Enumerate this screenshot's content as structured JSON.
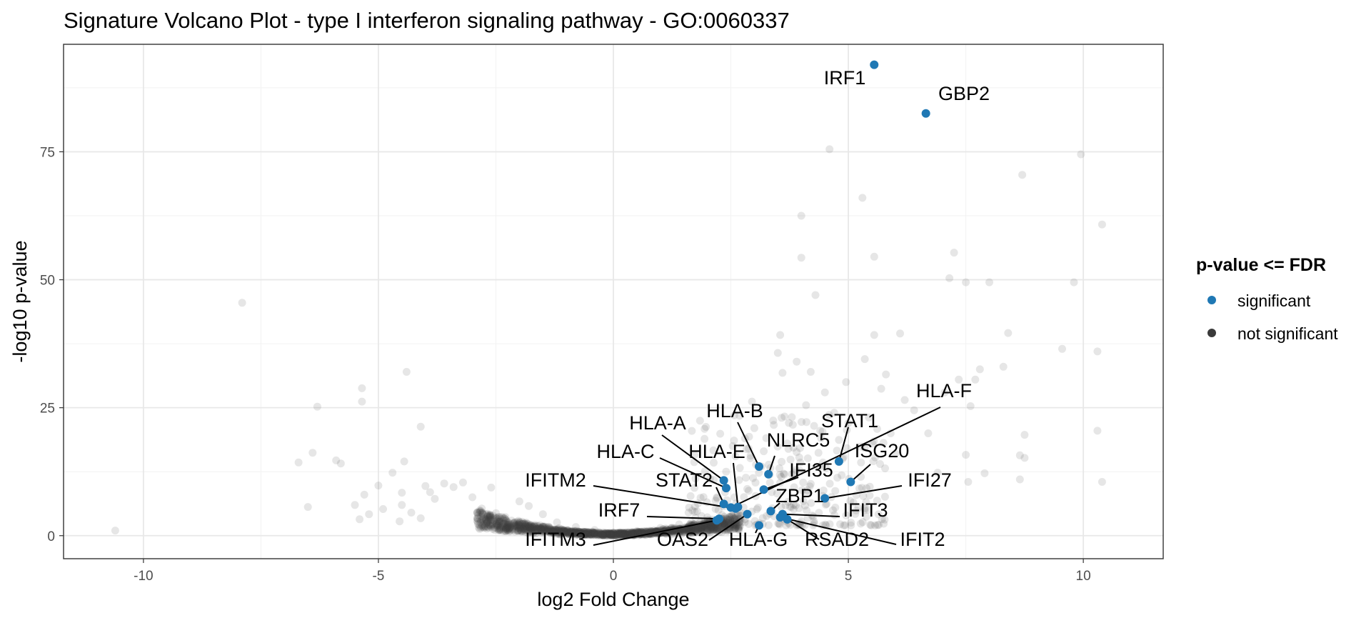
{
  "chart_data": {
    "type": "scatter",
    "title": "Signature Volcano Plot - type I interferon signaling pathway - GO:0060337",
    "xlabel": "log2 Fold Change",
    "ylabel": "-log10 p-value",
    "xlim": [
      -11.7,
      11.7
    ],
    "ylim": [
      -4.5,
      96
    ],
    "xticks": [
      -10,
      -5,
      0,
      5,
      10
    ],
    "yticks": [
      0,
      25,
      50,
      75
    ],
    "grid": true,
    "legend": {
      "title": "p-value <= FDR",
      "position": "right",
      "entries": [
        {
          "label": "significant",
          "color": "#1f78b4"
        },
        {
          "label": "not significant",
          "color": "#3a3a3a"
        }
      ]
    },
    "colors": {
      "significant": "#1f78b4",
      "not_significant": "#3a3a3a",
      "background_points": "#b0b0b0"
    },
    "series": [
      {
        "name": "significant",
        "points": [
          {
            "gene": "IRF1",
            "x": 5.55,
            "y": 92.0
          },
          {
            "gene": "GBP2",
            "x": 6.65,
            "y": 82.5
          },
          {
            "gene": "HLA-B",
            "x": 3.1,
            "y": 13.5
          },
          {
            "gene": "NLRC5",
            "x": 3.3,
            "y": 12.0
          },
          {
            "gene": "STAT1",
            "x": 4.8,
            "y": 14.5
          },
          {
            "gene": "HLA-F",
            "x": 2.5,
            "y": 5.5
          },
          {
            "gene": "ISG20",
            "x": 5.05,
            "y": 10.5
          },
          {
            "gene": "IFI27",
            "x": 4.5,
            "y": 7.3
          },
          {
            "gene": "HLA-A",
            "x": 2.35,
            "y": 10.8
          },
          {
            "gene": "HLA-C",
            "x": 2.4,
            "y": 9.3
          },
          {
            "gene": "HLA-E",
            "x": 2.65,
            "y": 5.6
          },
          {
            "gene": "STAT2",
            "x": 2.35,
            "y": 6.2
          },
          {
            "gene": "IFI35",
            "x": 3.2,
            "y": 9.0
          },
          {
            "gene": "IFITM2",
            "x": 2.6,
            "y": 5.3
          },
          {
            "gene": "ZBP1",
            "x": 3.35,
            "y": 4.8
          },
          {
            "gene": "IFIT3",
            "x": 3.6,
            "y": 4.2
          },
          {
            "gene": "IRF7",
            "x": 2.25,
            "y": 3.3
          },
          {
            "gene": "IFIT2",
            "x": 3.55,
            "y": 3.6
          },
          {
            "gene": "RSAD2",
            "x": 3.7,
            "y": 3.2
          },
          {
            "gene": "HLA-G",
            "x": 3.1,
            "y": 2.0
          },
          {
            "gene": "OAS2",
            "x": 2.85,
            "y": 4.2
          },
          {
            "gene": "IFITM3",
            "x": 2.2,
            "y": 3.0
          }
        ]
      },
      {
        "name": "not significant",
        "points": [
          [
            -10.6,
            1.0
          ],
          [
            -7.9,
            45.5
          ],
          [
            -6.7,
            14.3
          ],
          [
            -6.4,
            16.2
          ],
          [
            -6.5,
            5.6
          ],
          [
            -6.3,
            25.2
          ],
          [
            -5.9,
            14.7
          ],
          [
            -5.8,
            14.1
          ],
          [
            -5.5,
            6.0
          ],
          [
            -5.4,
            3.2
          ],
          [
            -5.35,
            28.8
          ],
          [
            -5.35,
            26.2
          ],
          [
            -5.3,
            8.0
          ],
          [
            -5.2,
            4.2
          ],
          [
            -5.0,
            9.8
          ],
          [
            -4.9,
            5.2
          ],
          [
            -4.7,
            12.3
          ],
          [
            -4.55,
            2.8
          ],
          [
            -4.5,
            8.4
          ],
          [
            -4.5,
            6.0
          ],
          [
            -4.45,
            14.5
          ],
          [
            -4.4,
            32.0
          ],
          [
            -4.3,
            4.5
          ],
          [
            -4.1,
            3.4
          ],
          [
            -4.1,
            21.3
          ],
          [
            -4.0,
            9.7
          ],
          [
            -3.9,
            8.5
          ],
          [
            -3.8,
            7.2
          ],
          [
            -3.6,
            10.2
          ],
          [
            -3.4,
            9.5
          ],
          [
            -3.2,
            10.4
          ],
          [
            -3.0,
            7.5
          ],
          [
            -2.8,
            5.3
          ],
          [
            -2.6,
            9.4
          ],
          [
            -2.5,
            4.4
          ],
          [
            -2.3,
            3.2
          ],
          [
            -2.0,
            6.7
          ],
          [
            -1.8,
            5.8
          ],
          [
            -1.5,
            4.2
          ],
          [
            -1.2,
            2.6
          ],
          [
            -0.8,
            1.7
          ],
          [
            -0.4,
            1.1
          ],
          [
            0.0,
            0.6
          ],
          [
            0.5,
            0.9
          ],
          [
            1.0,
            1.5
          ],
          [
            1.4,
            2.2
          ],
          [
            1.6,
            4.5
          ],
          [
            1.8,
            6.3
          ],
          [
            2.0,
            3.6
          ],
          [
            2.2,
            7.5
          ],
          [
            2.4,
            12.5
          ],
          [
            2.6,
            15.5
          ],
          [
            2.8,
            19.0
          ],
          [
            2.95,
            26.2
          ],
          [
            3.0,
            21.0
          ],
          [
            3.2,
            16.5
          ],
          [
            3.4,
            22.5
          ],
          [
            3.5,
            35.7
          ],
          [
            3.55,
            39.2
          ],
          [
            3.6,
            31.8
          ],
          [
            3.7,
            18.0
          ],
          [
            3.8,
            12.0
          ],
          [
            3.9,
            34.0
          ],
          [
            4.0,
            62.5
          ],
          [
            4.0,
            54.3
          ],
          [
            4.1,
            25.5
          ],
          [
            4.2,
            32.0
          ],
          [
            4.3,
            47.0
          ],
          [
            4.4,
            20.5
          ],
          [
            4.5,
            28.0
          ],
          [
            4.6,
            75.5
          ],
          [
            4.7,
            24.0
          ],
          [
            4.8,
            18.7
          ],
          [
            4.95,
            30.0
          ],
          [
            5.0,
            22.0
          ],
          [
            5.3,
            66.0
          ],
          [
            5.35,
            34.5
          ],
          [
            5.55,
            54.5
          ],
          [
            5.55,
            39.2
          ],
          [
            5.7,
            28.7
          ],
          [
            5.8,
            31.5
          ],
          [
            5.9,
            20.0
          ],
          [
            6.0,
            16.0
          ],
          [
            6.1,
            39.5
          ],
          [
            6.2,
            26.5
          ],
          [
            6.4,
            24.5
          ],
          [
            6.7,
            20.0
          ],
          [
            6.9,
            12.3
          ],
          [
            7.05,
            28.0
          ],
          [
            7.15,
            50.3
          ],
          [
            7.25,
            55.3
          ],
          [
            7.35,
            30.5
          ],
          [
            7.5,
            49.5
          ],
          [
            7.5,
            15.8
          ],
          [
            7.55,
            10.5
          ],
          [
            7.6,
            25.3
          ],
          [
            7.7,
            30.5
          ],
          [
            7.8,
            32.5
          ],
          [
            7.9,
            12.2
          ],
          [
            8.0,
            49.5
          ],
          [
            8.3,
            33.0
          ],
          [
            8.4,
            39.6
          ],
          [
            8.65,
            15.7
          ],
          [
            8.65,
            11.0
          ],
          [
            8.7,
            70.5
          ],
          [
            8.75,
            15.2
          ],
          [
            8.75,
            19.7
          ],
          [
            9.55,
            36.5
          ],
          [
            9.8,
            49.5
          ],
          [
            9.95,
            74.5
          ],
          [
            10.3,
            36.0
          ],
          [
            10.3,
            20.5
          ],
          [
            10.4,
            60.8
          ],
          [
            10.4,
            10.5
          ]
        ]
      }
    ]
  }
}
